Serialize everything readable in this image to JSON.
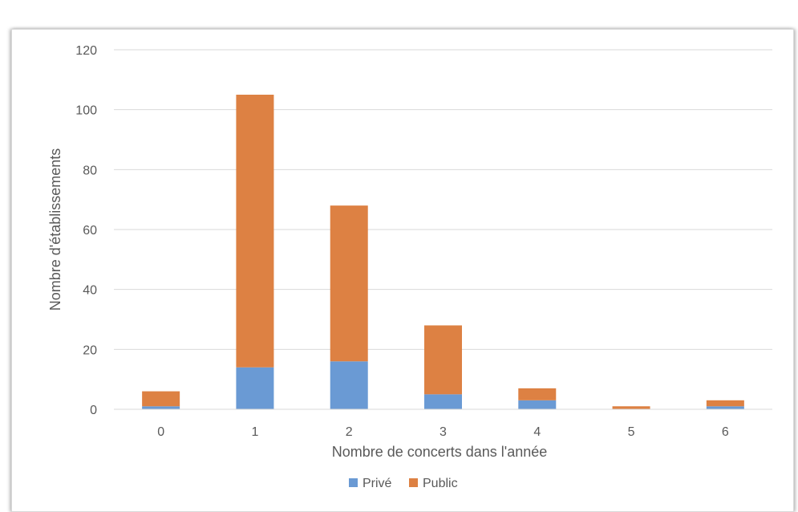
{
  "chart_data": {
    "type": "bar",
    "stacked": true,
    "title": "",
    "xlabel": "Nombre de concerts dans l'année",
    "ylabel": "Nombre d'établissements",
    "categories": [
      "0",
      "1",
      "2",
      "3",
      "4",
      "5",
      "6"
    ],
    "ylim": [
      0,
      120
    ],
    "yticks": [
      0,
      20,
      40,
      60,
      80,
      100,
      120
    ],
    "grid": true,
    "legend_position": "bottom",
    "series": [
      {
        "name": "Privé",
        "color": "#6a9ad4",
        "values": [
          1,
          14,
          16,
          5,
          3,
          0,
          1
        ]
      },
      {
        "name": "Public",
        "color": "#dd8143",
        "values": [
          5,
          91,
          52,
          23,
          4,
          1,
          2
        ]
      }
    ]
  }
}
